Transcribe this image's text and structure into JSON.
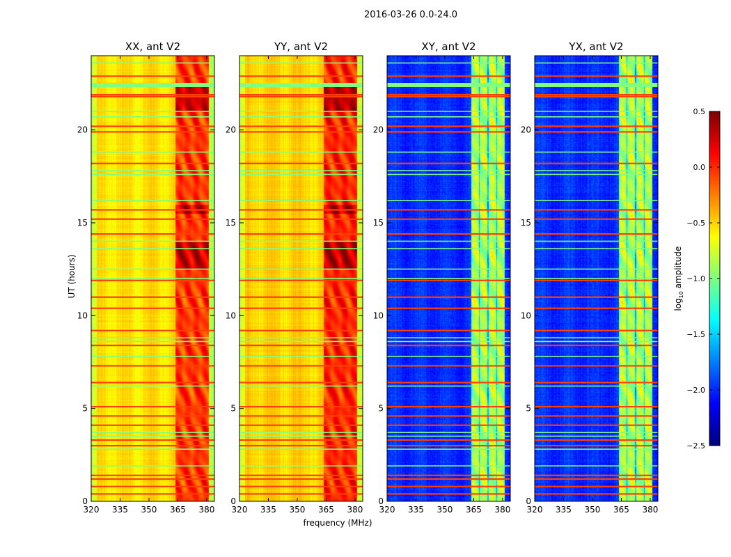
{
  "chart_data": {
    "type": "heatmap",
    "title": "2016-03-26 0.0-24.0",
    "xlabel": "frequency (MHz)",
    "ylabel": "UT (hours)",
    "xlim": [
      320,
      384
    ],
    "ylim": [
      0,
      24
    ],
    "xticks": [
      "320",
      "335",
      "350",
      "365",
      "380"
    ],
    "yticks": [
      "0",
      "5",
      "10",
      "15",
      "20"
    ],
    "panels": [
      {
        "title": "XX, ant V2",
        "kind": "auto",
        "base": -0.55,
        "band_level": -0.1
      },
      {
        "title": "YY, ant V2",
        "kind": "auto",
        "base": -0.5,
        "band_level": -0.05
      },
      {
        "title": "XY, ant V2",
        "kind": "cross",
        "base": -2.0,
        "band_level": -1.0
      },
      {
        "title": "YX, ant V2",
        "kind": "cross",
        "base": -2.0,
        "band_level": -1.0
      }
    ],
    "band_mhz": [
      363.5,
      381
    ],
    "flagged_rows_high_hours": [
      22.9,
      21.9,
      21.8,
      20.2,
      19.9,
      18.2,
      15.7,
      15.2,
      14.4,
      11.9,
      11.0,
      10.4,
      9.2,
      8.4,
      7.3,
      6.4,
      5.1,
      4.6,
      4.1,
      3.3,
      3.0,
      1.4,
      1.2,
      0.8,
      0.4
    ],
    "flagged_rows_low_hours": [
      23.6,
      22.5,
      21.0,
      20.7,
      18.8,
      17.8,
      17.6,
      16.2,
      14.0,
      13.6,
      12.5,
      12.0,
      8.8,
      8.6,
      7.8,
      6.2,
      3.7,
      3.5,
      2.8,
      1.9
    ],
    "colorbar": {
      "label": "log10 amplitude",
      "label_main": "log",
      "label_sub": "10",
      "label_rest": " amplitude",
      "range": [
        -2.5,
        0.5
      ],
      "ticks": [
        "0.5",
        "0.0",
        "−0.5",
        "−1.0",
        "−1.5",
        "−2.0",
        "−2.5"
      ],
      "colormap": "jet"
    }
  }
}
